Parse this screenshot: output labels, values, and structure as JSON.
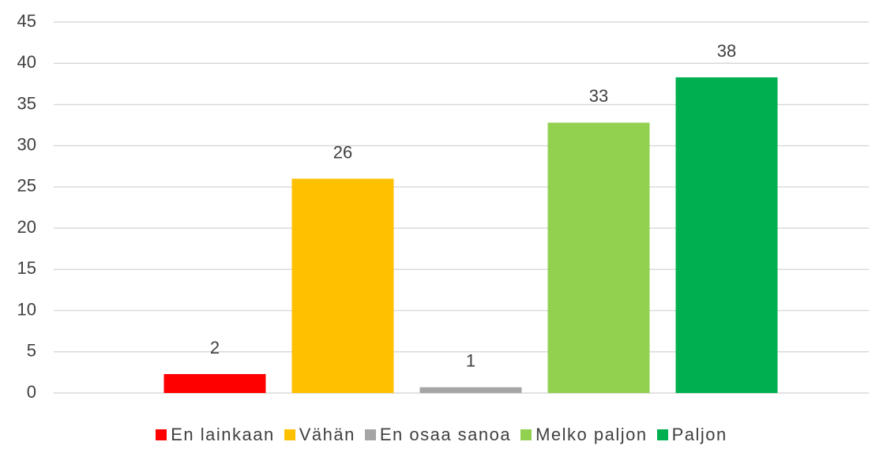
{
  "chart_data": {
    "type": "bar",
    "categories": [
      null
    ],
    "series": [
      {
        "name": "En lainkaan",
        "color": "#ff0000",
        "values": [
          2.3
        ],
        "value_labels": [
          "2"
        ]
      },
      {
        "name": "Vähän",
        "color": "#ffc000",
        "values": [
          26
        ],
        "value_labels": [
          "26"
        ]
      },
      {
        "name": "En osaa sanoa",
        "color": "#a5a5a5",
        "values": [
          0.7
        ],
        "value_labels": [
          "1"
        ]
      },
      {
        "name": "Melko paljon",
        "color": "#92d050",
        "values": [
          32.8
        ],
        "value_labels": [
          "33"
        ]
      },
      {
        "name": "Paljon",
        "color": "#00b050",
        "values": [
          38.3
        ],
        "value_labels": [
          "38"
        ]
      }
    ],
    "ylim": [
      0,
      45
    ],
    "yticks": [
      0,
      5,
      10,
      15,
      20,
      25,
      30,
      35,
      40,
      45
    ],
    "grid": true,
    "legend": "bottom"
  }
}
